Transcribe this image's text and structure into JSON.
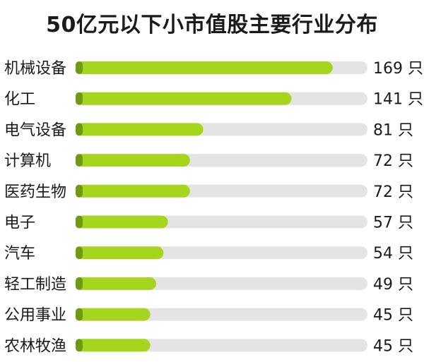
{
  "colors": {
    "bar_fill": "#a6d51e",
    "bar_fill_dark": "#6d9a10",
    "track": "#e4e4e4",
    "text": "#1a1a1a"
  },
  "chart_data": {
    "type": "bar",
    "orientation": "horizontal",
    "title": "50亿元以下小市值股主要行业分布",
    "categories": [
      "机械设备",
      "化工",
      "电气设备",
      "计算机",
      "医药生物",
      "电子",
      "汽车",
      "轻工制造",
      "公用事业",
      "农林牧渔"
    ],
    "values": [
      169,
      141,
      81,
      72,
      72,
      57,
      54,
      49,
      45,
      45
    ],
    "value_labels": [
      "169 只",
      "141 只",
      "81 只",
      "72 只",
      "72 只",
      "57 只",
      "54 只",
      "49 只",
      "45 只",
      "45 只"
    ],
    "xlim": [
      0,
      185
    ],
    "grid": false,
    "legend": "none"
  }
}
